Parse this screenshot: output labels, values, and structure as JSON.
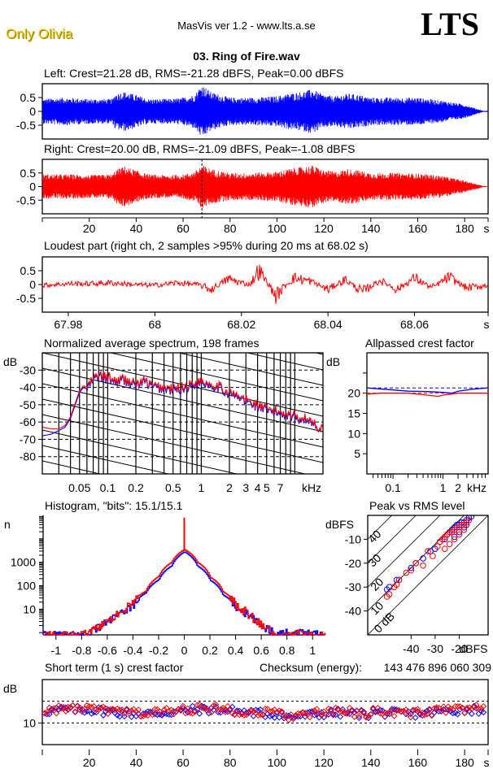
{
  "header": {
    "brand": "Only Olivia",
    "app_title": "MasVis ver 1.2 - www.lts.a.se",
    "logo": "LTS",
    "file_title": "03. Ring of Fire.wav"
  },
  "colors": {
    "left": "#0000ff",
    "right": "#ff0000",
    "axis": "#000000",
    "background": "#ffffff"
  },
  "chart_data": [
    {
      "id": "left-waveform",
      "type": "line",
      "title": "Left: Crest=21.28 dB, RMS=-21.28 dBFS, Peak=0.00 dBFS",
      "channel": "left",
      "xlabel": "s",
      "ylabel": "",
      "xlim": [
        0,
        190
      ],
      "ylim": [
        -1,
        1
      ],
      "yticks": [
        0.5,
        0,
        -0.5
      ],
      "ytick_labels": [
        "0.5",
        "0",
        "-0.5"
      ],
      "envelope": {
        "t": [
          0,
          10,
          20,
          30,
          31,
          35,
          40,
          45,
          50,
          55,
          60,
          65,
          68,
          72,
          80,
          90,
          100,
          105,
          110,
          115,
          120,
          125,
          130,
          135,
          140,
          150,
          160,
          170,
          180,
          185,
          188,
          190
        ],
        "amp": [
          0.45,
          0.5,
          0.45,
          0.45,
          0.65,
          0.72,
          0.6,
          0.45,
          0.45,
          0.45,
          0.5,
          0.62,
          0.98,
          0.7,
          0.5,
          0.5,
          0.55,
          0.65,
          0.7,
          0.8,
          0.6,
          0.55,
          0.65,
          0.6,
          0.5,
          0.5,
          0.5,
          0.4,
          0.25,
          0.1,
          0.02,
          0.02
        ]
      }
    },
    {
      "id": "right-waveform",
      "type": "line",
      "title": "Right: Crest=20.00 dB, RMS=-21.09 dBFS, Peak=-1.08 dBFS",
      "channel": "right",
      "xlabel": "s",
      "xlim": [
        0,
        190
      ],
      "ylim": [
        -1,
        1
      ],
      "yticks": [
        0.5,
        0,
        -0.5
      ],
      "ytick_labels": [
        "0.5",
        "0",
        "-0.5"
      ],
      "xticks": [
        20,
        40,
        60,
        80,
        100,
        120,
        140,
        160,
        180
      ],
      "xtick_labels": [
        "20",
        "40",
        "60",
        "80",
        "100",
        "120",
        "140",
        "160",
        "180",
        "s"
      ],
      "marker_time": 68.02,
      "envelope": {
        "t": [
          0,
          10,
          20,
          30,
          31,
          35,
          40,
          45,
          50,
          55,
          60,
          65,
          68,
          72,
          80,
          90,
          100,
          105,
          110,
          115,
          120,
          125,
          130,
          135,
          140,
          150,
          160,
          170,
          180,
          185,
          188,
          190
        ],
        "amp": [
          0.45,
          0.45,
          0.42,
          0.45,
          0.6,
          0.75,
          0.6,
          0.45,
          0.42,
          0.42,
          0.45,
          0.55,
          0.8,
          0.65,
          0.5,
          0.5,
          0.55,
          0.65,
          0.72,
          0.78,
          0.6,
          0.55,
          0.65,
          0.6,
          0.5,
          0.5,
          0.48,
          0.4,
          0.22,
          0.1,
          0.02,
          0.02
        ]
      }
    },
    {
      "id": "loudest-part",
      "type": "line",
      "title": "Loudest part (right ch, 2 samples >95% during 20 ms at 68.02 s)",
      "channel": "right",
      "xlabel": "s",
      "xlim": [
        67.974,
        68.077
      ],
      "ylim": [
        -1,
        1
      ],
      "yticks": [
        0.5,
        0,
        -0.5
      ],
      "ytick_labels": [
        "0.5",
        "0",
        "-0.5"
      ],
      "xticks": [
        67.98,
        68,
        68.02,
        68.04,
        68.06
      ],
      "xtick_labels": [
        "67.98",
        "68",
        "68.02",
        "68.04",
        "68.06",
        "s"
      ],
      "waveform": {
        "t": [
          67.974,
          67.98,
          67.985,
          67.99,
          67.995,
          68.0,
          68.005,
          68.01,
          68.013,
          68.017,
          68.02,
          68.022,
          68.024,
          68.026,
          68.028,
          68.03,
          68.032,
          68.036,
          68.04,
          68.044,
          68.048,
          68.052,
          68.056,
          68.06,
          68.064,
          68.068,
          68.072,
          68.077
        ],
        "v": [
          -0.05,
          0.05,
          0.05,
          0.1,
          0.0,
          -0.05,
          0.1,
          0.0,
          -0.3,
          0.35,
          0.1,
          0.0,
          0.85,
          0.1,
          -0.7,
          -0.1,
          0.4,
          0.2,
          -0.3,
          0.3,
          -0.45,
          0.25,
          -0.3,
          0.4,
          -0.2,
          0.45,
          -0.2,
          -0.05
        ]
      }
    },
    {
      "id": "average-spectrum",
      "type": "line",
      "title": "Normalized average spectrum, 198 frames",
      "xlabel": "kHz",
      "ylabel": "dB",
      "xscale": "log",
      "xlim": [
        0.02,
        20
      ],
      "ylim": [
        -90,
        -20
      ],
      "yticks": [
        -30,
        -40,
        -50,
        -60,
        -70,
        -80
      ],
      "ytick_labels": [
        "-30",
        "-40",
        "-50",
        "-60",
        "-70",
        "-80"
      ],
      "xticks": [
        0.05,
        0.1,
        0.2,
        0.5,
        1,
        2,
        3,
        4,
        5,
        7
      ],
      "xtick_labels": [
        "0.05",
        "0.1",
        "0.2",
        "0.5",
        "1",
        "2",
        "3",
        "4",
        "5",
        "7",
        "kHz"
      ],
      "series": [
        {
          "name": "left",
          "x": [
            0.02,
            0.025,
            0.03,
            0.035,
            0.04,
            0.045,
            0.05,
            0.055,
            0.06,
            0.07,
            0.08,
            0.09,
            0.1,
            0.12,
            0.15,
            0.2,
            0.25,
            0.3,
            0.4,
            0.5,
            0.7,
            1,
            1.5,
            2,
            3,
            4,
            5,
            7,
            10,
            15,
            20
          ],
          "y": [
            -68,
            -67,
            -65,
            -63,
            -58,
            -50,
            -43,
            -40,
            -41,
            -36,
            -34,
            -35,
            -35,
            -37,
            -36,
            -39,
            -37,
            -40,
            -41,
            -42,
            -40,
            -37,
            -40,
            -44,
            -48,
            -51,
            -54,
            -55,
            -57,
            -60,
            -65
          ]
        },
        {
          "name": "right",
          "x": [
            0.02,
            0.025,
            0.03,
            0.035,
            0.04,
            0.045,
            0.05,
            0.055,
            0.06,
            0.07,
            0.08,
            0.09,
            0.1,
            0.12,
            0.15,
            0.2,
            0.25,
            0.3,
            0.4,
            0.5,
            0.7,
            1,
            1.5,
            2,
            3,
            4,
            5,
            7,
            10,
            15,
            20
          ],
          "y": [
            -63,
            -64,
            -64,
            -62,
            -57,
            -49,
            -42,
            -39,
            -40,
            -35,
            -33,
            -34,
            -34,
            -36,
            -35,
            -38,
            -36,
            -39,
            -40,
            -41,
            -39,
            -36,
            -39,
            -43,
            -47,
            -50,
            -53,
            -54,
            -56,
            -59,
            -65
          ]
        }
      ]
    },
    {
      "id": "allpassed-crest-factor",
      "type": "line",
      "title": "Allpassed crest factor",
      "xlabel": "kHz",
      "ylabel": "dB",
      "xscale": "log",
      "xlim": [
        0.03,
        8
      ],
      "ylim": [
        0,
        30
      ],
      "yticks": [
        5,
        10,
        15,
        20
      ],
      "ytick_labels": [
        "5",
        "10",
        "15",
        "20"
      ],
      "xticks": [
        0.1,
        1,
        2
      ],
      "xtick_labels": [
        "0.1",
        "1",
        "2",
        "kHz"
      ],
      "reference": {
        "left": 21.3,
        "right": 20.0
      },
      "series": [
        {
          "name": "left",
          "x": [
            0.03,
            0.06,
            0.1,
            0.2,
            0.5,
            1,
            1.5,
            2,
            4,
            8
          ],
          "y": [
            21.3,
            21.0,
            20.8,
            20.5,
            20.4,
            20.2,
            20.0,
            20.5,
            21.0,
            21.3
          ]
        },
        {
          "name": "right",
          "x": [
            0.03,
            0.06,
            0.1,
            0.2,
            0.5,
            0.8,
            1,
            1.5,
            2,
            4,
            8
          ],
          "y": [
            19.8,
            20.0,
            20.0,
            20.0,
            19.5,
            19.2,
            19.5,
            19.8,
            20.0,
            20.0,
            20.0
          ]
        }
      ]
    },
    {
      "id": "histogram",
      "type": "line",
      "title": "Histogram, \"bits\": 15.1/15.1",
      "ylabel": "n",
      "yscale": "log",
      "xlim": [
        -1.1,
        1.1
      ],
      "ylim": [
        0.8,
        100000
      ],
      "yticks": [
        1000,
        100,
        10
      ],
      "ytick_labels": [
        "1000",
        "100",
        "10"
      ],
      "xticks": [
        -1,
        -0.8,
        -0.6,
        -0.4,
        -0.2,
        0,
        0.2,
        0.4,
        0.6,
        0.8,
        1
      ],
      "xtick_labels": [
        "-1",
        "-0.8",
        "-0.6",
        "-0.4",
        "-0.2",
        "0",
        "0.2",
        "0.4",
        "0.6",
        "0.8",
        "1"
      ],
      "series": [
        {
          "name": "left",
          "x": [
            -1.1,
            -0.8,
            -0.75,
            -0.65,
            -0.6,
            -0.5,
            -0.4,
            -0.3,
            -0.2,
            -0.1,
            0,
            0.1,
            0.2,
            0.3,
            0.4,
            0.5,
            0.6,
            0.7,
            0.8,
            1.0,
            1.1
          ],
          "y": [
            0.8,
            0.8,
            1,
            2,
            3,
            6,
            15,
            50,
            180,
            700,
            2800,
            700,
            170,
            40,
            12,
            5,
            2,
            1,
            1,
            1,
            0.8
          ]
        },
        {
          "name": "right",
          "x": [
            -1.1,
            -0.8,
            -0.75,
            -0.65,
            -0.6,
            -0.5,
            -0.4,
            -0.3,
            -0.2,
            -0.1,
            0,
            0.1,
            0.2,
            0.3,
            0.4,
            0.5,
            0.6,
            0.7,
            0.8,
            1.0,
            1.1
          ],
          "y": [
            0.8,
            0.8,
            1,
            2,
            3,
            7,
            18,
            60,
            250,
            1000,
            3500,
            1000,
            230,
            55,
            15,
            6,
            2,
            1,
            1,
            0.8,
            0.8
          ]
        }
      ],
      "zero_spike": 80000
    },
    {
      "id": "peak-vs-rms",
      "type": "scatter",
      "title": "Peak vs RMS level",
      "xlabel": "dBFS",
      "ylabel": "dBFS",
      "xlim": [
        -50,
        0
      ],
      "ylim": [
        -50,
        0
      ],
      "xticks": [
        -40,
        -30,
        -20
      ],
      "xtick_labels": [
        "-40",
        "-30",
        "-20",
        "dBFS"
      ],
      "yticks": [
        -10,
        -20,
        -30,
        -40
      ],
      "ytick_labels": [
        "-10",
        "-20",
        "-30",
        "-40"
      ],
      "crest_lines_db": [
        0,
        10,
        20,
        30,
        40
      ],
      "crest_line_labels": [
        "0 dB",
        "10",
        "20",
        "30",
        "40"
      ],
      "series": [
        {
          "name": "left",
          "x": [
            -50,
            -49,
            -46,
            -45,
            -40,
            -38,
            -35,
            -32,
            -30,
            -28,
            -26,
            -25,
            -24,
            -23,
            -22,
            -21,
            -20,
            -19,
            -18,
            -17,
            -16,
            -15,
            -22,
            -20,
            -18,
            -17
          ],
          "y": [
            -31,
            -30,
            -27,
            -27,
            -22,
            -20,
            -18,
            -15,
            -14,
            -11,
            -10,
            -8,
            -7,
            -6,
            -5,
            -4,
            -4,
            -3,
            -3,
            -2,
            -1,
            -0.5,
            -9,
            -7,
            -5,
            -4
          ]
        },
        {
          "name": "right",
          "x": [
            -50,
            -49,
            -47,
            -46,
            -45,
            -42,
            -40,
            -38,
            -35,
            -33,
            -31,
            -29,
            -28,
            -27,
            -26,
            -25,
            -24,
            -23,
            -22,
            -21,
            -20,
            -19,
            -18,
            -17,
            -16,
            -24,
            -22,
            -20,
            -18,
            -26
          ],
          "y": [
            -34,
            -33,
            -30,
            -29,
            -27,
            -24,
            -23,
            -20,
            -21,
            -15,
            -17,
            -13,
            -11,
            -10,
            -9,
            -8,
            -7,
            -7,
            -6,
            -5,
            -5,
            -4,
            -4,
            -3,
            -2,
            -12,
            -10,
            -8,
            -6,
            -14
          ]
        }
      ]
    },
    {
      "id": "short-term-crest",
      "type": "scatter",
      "title": "Short term (1 s) crest factor",
      "checksum_label": "Checksum (energy):",
      "checksum_value": "143 476 896 060 309",
      "xlabel": "s",
      "ylabel": "dB",
      "xlim": [
        0,
        190
      ],
      "ylim": [
        5,
        20
      ],
      "yticks": [
        10
      ],
      "ytick_labels": [
        "10"
      ],
      "gridlines": [
        10,
        15
      ],
      "xticks": [
        20,
        40,
        60,
        80,
        100,
        120,
        140,
        160,
        180
      ],
      "xtick_labels": [
        "20",
        "40",
        "60",
        "80",
        "100",
        "120",
        "140",
        "160",
        "180",
        "s"
      ],
      "series": [
        {
          "name": "left",
          "pattern_mean": 12.6,
          "pattern_spread": 1.0
        },
        {
          "name": "right",
          "pattern_mean": 12.8,
          "pattern_spread": 1.0
        }
      ]
    }
  ]
}
